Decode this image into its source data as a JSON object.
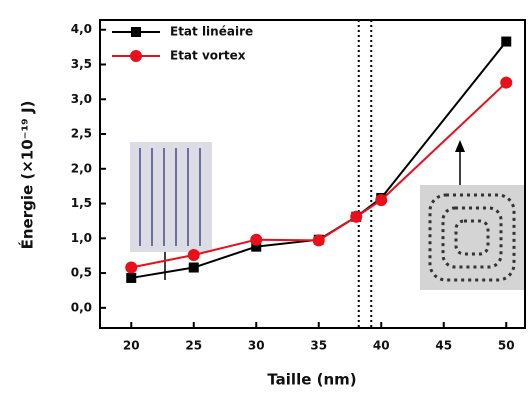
{
  "chart_data": {
    "type": "line",
    "x_label": "Taille (nm)",
    "y_label": "Énergie (×10⁻¹⁹ J)",
    "xlim": [
      17.5,
      51.5
    ],
    "xticks": [
      20,
      25,
      30,
      35,
      40,
      45,
      50
    ],
    "ylim": [
      -0.29,
      4.14
    ],
    "yticks": [
      {
        "value": 0,
        "label": "0,0"
      },
      {
        "value": 0.5,
        "label": "0,5"
      },
      {
        "value": 1,
        "label": "1,0"
      },
      {
        "value": 1.5,
        "label": "1,5"
      },
      {
        "value": 2,
        "label": "2,0"
      },
      {
        "value": 2.5,
        "label": "2,5"
      },
      {
        "value": 3,
        "label": "3,0"
      },
      {
        "value": 3.5,
        "label": "3,5"
      },
      {
        "value": 4,
        "label": "4,0"
      }
    ],
    "x": [
      20,
      25,
      30,
      35,
      38,
      40,
      50
    ],
    "series": [
      {
        "name": "Etat linéaire",
        "color": "#000000",
        "marker": "square",
        "values": [
          0.43,
          0.58,
          0.88,
          0.98,
          1.31,
          1.58,
          3.83
        ]
      },
      {
        "name": "Etat vortex",
        "color": "#e8101a",
        "marker": "circle",
        "values": [
          0.58,
          0.76,
          0.98,
          0.97,
          1.31,
          1.55,
          3.24
        ]
      }
    ],
    "reference_lines_x": [
      38.2,
      39.2
    ],
    "legend": "upper-left"
  }
}
